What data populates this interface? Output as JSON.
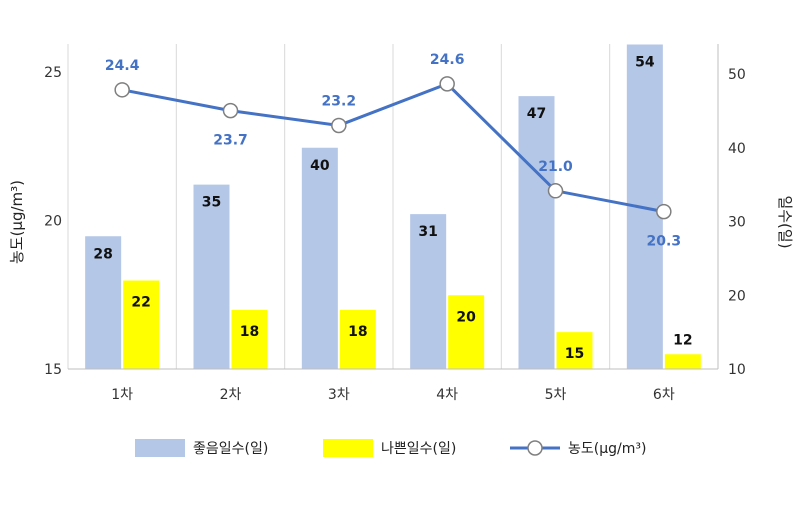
{
  "chart_data": {
    "type": "bar",
    "categories": [
      "1차",
      "2차",
      "3차",
      "4차",
      "5차",
      "6차"
    ],
    "series": [
      {
        "name": "좋음일수(일)",
        "type": "bar",
        "axis": "right",
        "values": [
          28,
          35,
          40,
          31,
          47,
          54
        ],
        "color": "#b4c7e7"
      },
      {
        "name": "나쁜일수(일)",
        "type": "bar",
        "axis": "right",
        "values": [
          22,
          18,
          18,
          20,
          15,
          12
        ],
        "color": "#ffff00"
      },
      {
        "name": "농도(μg/m³)",
        "type": "line",
        "axis": "left",
        "values": [
          24.4,
          23.7,
          23.2,
          24.6,
          21.0,
          20.3
        ],
        "color": "#4472c4"
      }
    ],
    "y_left": {
      "label": "농도(μg/m³)",
      "ylim": [
        15,
        25
      ],
      "ticks": [
        "15",
        "20",
        "25"
      ]
    },
    "y_right": {
      "label": "일수(일)",
      "ylim": [
        10,
        50
      ],
      "ticks": [
        "10",
        "20",
        "30",
        "40",
        "50"
      ]
    },
    "line_labels": [
      "24.4",
      "23.7",
      "23.2",
      "24.6",
      "21.0",
      "20.3"
    ],
    "grid": "vertical",
    "legend_position": "bottom"
  }
}
